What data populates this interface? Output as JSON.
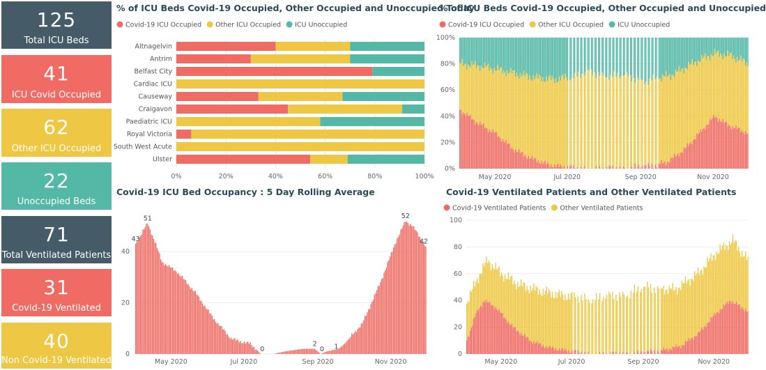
{
  "colors": {
    "covid": "#ef6b63",
    "other": "#eec844",
    "unoccupied": "#53b8a6",
    "dark": "#455c68",
    "title": "#2b4a59"
  },
  "cards": [
    {
      "value": "125",
      "label": "Total ICU Beds",
      "color": "#455c68"
    },
    {
      "value": "41",
      "label": "ICU Covid Occupied",
      "color": "#ef6b63"
    },
    {
      "value": "62",
      "label": "Other ICU Occupied",
      "color": "#eec844"
    },
    {
      "value": "22",
      "label": "Unoccupied Beds",
      "color": "#53b8a6"
    },
    {
      "value": "71",
      "label": "Total Ventilated Patients",
      "color": "#455c68"
    },
    {
      "value": "31",
      "label": "Covid-19 Ventilated",
      "color": "#ef6b63"
    },
    {
      "value": "40",
      "label": "Non Covid-19 Ventilated",
      "color": "#eec844"
    }
  ],
  "chart_data": [
    {
      "id": "today",
      "type": "bar",
      "orientation": "horizontal",
      "stacked": "100%",
      "title": "% of ICU Beds Covid-19 Occupied, Other Occupied and Unoccupied Today",
      "legend": [
        "Covid-19 ICU Occupied",
        "Other ICU Occupied",
        "ICU Unoccupied"
      ],
      "categories": [
        "Altnagelvin",
        "Antrim",
        "Belfast City",
        "Cardiac ICU",
        "Causeway",
        "Craigavon",
        "Paediatric ICU",
        "Royal Victoria",
        "South West Acute",
        "Ulster"
      ],
      "series": [
        {
          "name": "Covid-19 ICU Occupied",
          "values": [
            40,
            30,
            79,
            0,
            33,
            45,
            0,
            6,
            0,
            54
          ]
        },
        {
          "name": "Other ICU Occupied",
          "values": [
            30,
            40,
            0,
            100,
            34,
            46,
            58,
            94,
            100,
            15
          ]
        },
        {
          "name": "ICU Unoccupied",
          "values": [
            30,
            30,
            21,
            0,
            33,
            9,
            42,
            0,
            0,
            31
          ]
        }
      ],
      "xticks": [
        "0%",
        "20%",
        "40%",
        "60%",
        "80%",
        "100%"
      ],
      "xlim": [
        0,
        100
      ]
    },
    {
      "id": "history",
      "type": "bar",
      "stacked": "100%",
      "title": "% of ICU Beds Covid-19 Occupied, Other Occupied and Unoccupied",
      "legend": [
        "Covid-19 ICU Occupied",
        "Other ICU Occupied",
        "ICU Unoccupied"
      ],
      "x_range": [
        "2020-04-01",
        "2020-11-30"
      ],
      "xticks": [
        "May 2020",
        "Jul 2020",
        "Sep 2020",
        "Nov 2020"
      ],
      "yticks": [
        "0%",
        "20%",
        "40%",
        "60%",
        "80%",
        "100%"
      ],
      "ylim": [
        0,
        100
      ],
      "covid_keypoints": [
        [
          0,
          45
        ],
        [
          15,
          35
        ],
        [
          30,
          27
        ],
        [
          45,
          15
        ],
        [
          60,
          8
        ],
        [
          75,
          3
        ],
        [
          90,
          1
        ],
        [
          110,
          0
        ],
        [
          140,
          1
        ],
        [
          160,
          2
        ],
        [
          175,
          5
        ],
        [
          190,
          15
        ],
        [
          205,
          30
        ],
        [
          215,
          40
        ],
        [
          225,
          34
        ],
        [
          243,
          27
        ]
      ],
      "occupied_keypoints": [
        [
          0,
          80
        ],
        [
          20,
          78
        ],
        [
          40,
          74
        ],
        [
          60,
          70
        ],
        [
          80,
          68
        ],
        [
          110,
          73
        ],
        [
          140,
          70
        ],
        [
          160,
          67
        ],
        [
          180,
          72
        ],
        [
          200,
          82
        ],
        [
          215,
          88
        ],
        [
          230,
          86
        ],
        [
          243,
          80
        ]
      ],
      "gap_days": "roughly every third day from early July to mid-September"
    },
    {
      "id": "rolling",
      "type": "bar",
      "title": "Covid-19 ICU Bed Occupancy : 5 Day Rolling Average",
      "x_range": [
        "2020-04-01",
        "2020-11-30"
      ],
      "xticks": [
        "May 2020",
        "Jul 2020",
        "Sep 2020",
        "Nov 2020"
      ],
      "yticks": [
        "0",
        "20",
        "40"
      ],
      "ylim": [
        0,
        55
      ],
      "keypoints": [
        [
          0,
          43
        ],
        [
          6,
          48
        ],
        [
          10,
          51
        ],
        [
          16,
          44
        ],
        [
          22,
          36
        ],
        [
          35,
          32
        ],
        [
          50,
          24
        ],
        [
          65,
          14
        ],
        [
          80,
          6
        ],
        [
          87,
          5
        ],
        [
          96,
          4
        ],
        [
          105,
          0
        ],
        [
          115,
          0
        ],
        [
          125,
          1
        ],
        [
          140,
          2
        ],
        [
          150,
          2
        ],
        [
          155,
          0
        ],
        [
          160,
          1
        ],
        [
          170,
          2
        ],
        [
          175,
          4
        ],
        [
          190,
          12
        ],
        [
          205,
          28
        ],
        [
          218,
          44
        ],
        [
          226,
          52
        ],
        [
          232,
          50
        ],
        [
          243,
          42
        ]
      ],
      "data_labels": [
        {
          "day": 0,
          "value": 43,
          "label": "43"
        },
        {
          "day": 10,
          "value": 51,
          "label": "51"
        },
        {
          "day": 106,
          "value": 0,
          "label": "0"
        },
        {
          "day": 150,
          "value": 2,
          "label": "2"
        },
        {
          "day": 156,
          "value": 0,
          "label": "0"
        },
        {
          "day": 168,
          "value": 1,
          "label": "1"
        },
        {
          "day": 226,
          "value": 52,
          "label": "52"
        },
        {
          "day": 243,
          "value": 42,
          "label": "42"
        }
      ]
    },
    {
      "id": "ventilated",
      "type": "bar",
      "stacked": true,
      "title": "Covid-19 Ventilated Patients and Other Ventilated Patients",
      "legend": [
        "Covid-19 Ventilated Patients",
        "Other Ventilated Patients"
      ],
      "x_range": [
        "2020-04-01",
        "2020-11-30"
      ],
      "xticks": [
        "May 2020",
        "Jul 2020",
        "Sep 2020",
        "Nov 2020"
      ],
      "yticks": [
        "0",
        "20",
        "40",
        "60",
        "80",
        "100"
      ],
      "ylim": [
        0,
        100
      ],
      "covid_keypoints": [
        [
          0,
          10
        ],
        [
          8,
          30
        ],
        [
          15,
          40
        ],
        [
          25,
          35
        ],
        [
          40,
          20
        ],
        [
          55,
          10
        ],
        [
          70,
          5
        ],
        [
          90,
          2
        ],
        [
          110,
          0
        ],
        [
          150,
          1
        ],
        [
          170,
          3
        ],
        [
          185,
          6
        ],
        [
          200,
          15
        ],
        [
          215,
          30
        ],
        [
          228,
          40
        ],
        [
          243,
          32
        ]
      ],
      "total_keypoints": [
        [
          0,
          38
        ],
        [
          10,
          58
        ],
        [
          18,
          70
        ],
        [
          30,
          60
        ],
        [
          45,
          52
        ],
        [
          60,
          48
        ],
        [
          80,
          44
        ],
        [
          100,
          42
        ],
        [
          120,
          42
        ],
        [
          140,
          46
        ],
        [
          160,
          50
        ],
        [
          180,
          48
        ],
        [
          200,
          60
        ],
        [
          215,
          75
        ],
        [
          230,
          85
        ],
        [
          243,
          70
        ]
      ],
      "gap_days": "roughly every third day from early July to mid-September"
    }
  ]
}
